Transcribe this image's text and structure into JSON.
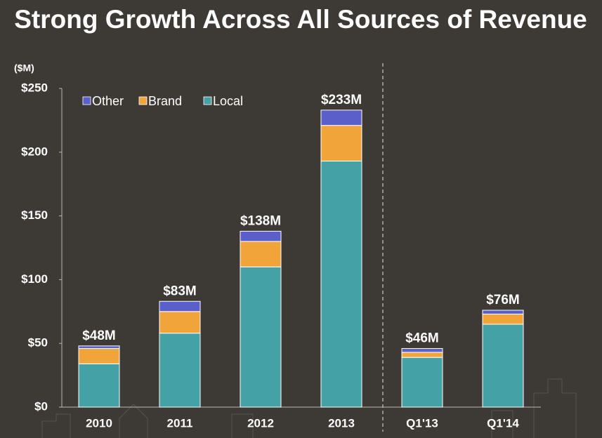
{
  "chart_data": {
    "type": "stacked_bar",
    "title": "Strong Growth Across All Sources of Revenue",
    "y_label": "($M)",
    "categories": [
      "2010",
      "2011",
      "2012",
      "2013",
      "Q1'13",
      "Q1'14"
    ],
    "series": [
      {
        "name": "Local",
        "color": "#44a2a6",
        "values": [
          34,
          58,
          110,
          193,
          39,
          65
        ]
      },
      {
        "name": "Brand",
        "color": "#f0a43a",
        "values": [
          12,
          17,
          20,
          28,
          4,
          8
        ]
      },
      {
        "name": "Other",
        "color": "#5b5fc9",
        "values": [
          2,
          8,
          8,
          12,
          3,
          3
        ]
      }
    ],
    "totals": {
      "values": [
        48,
        83,
        138,
        233,
        46,
        76
      ],
      "value_labels": [
        "$48M",
        "$83M",
        "$138M",
        "$233M",
        "$46M",
        "$76M"
      ]
    },
    "ylim": [
      0,
      250
    ],
    "yticks": [
      {
        "value": 0,
        "label": "$0"
      },
      {
        "value": 50,
        "label": "$50"
      },
      {
        "value": 100,
        "label": "$100"
      },
      {
        "value": 150,
        "label": "$150"
      },
      {
        "value": 200,
        "label": "$200"
      },
      {
        "value": 250,
        "label": "$250"
      }
    ],
    "legend": "top-left"
  }
}
